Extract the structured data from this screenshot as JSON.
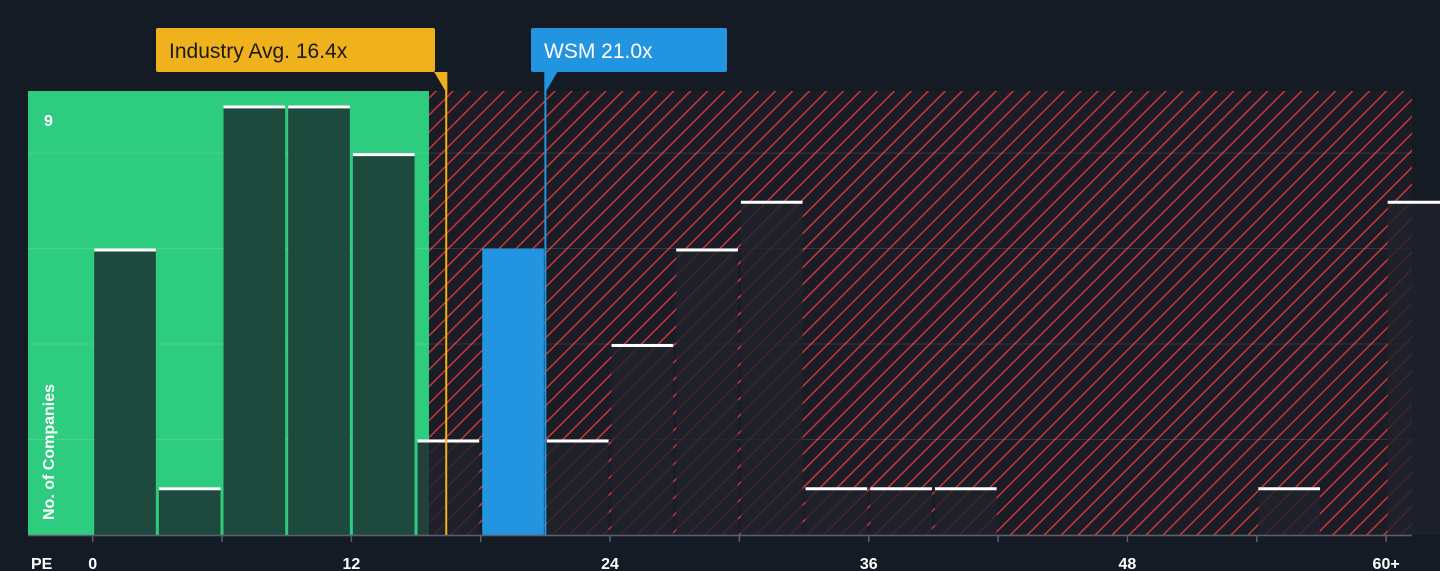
{
  "chart_data": {
    "type": "bar",
    "xlabel": "PE",
    "ylabel": "No. of Companies",
    "y_max_label": "9",
    "ylim": [
      0,
      9.3
    ],
    "xlim": [
      -3,
      61.2
    ],
    "x_ticks": [
      0,
      12,
      24,
      36,
      48,
      60
    ],
    "x_tick_labels": [
      "0",
      "12",
      "24",
      "36",
      "48",
      "60+"
    ],
    "bin_width": 3,
    "bins": [
      {
        "start": 0,
        "value": 6
      },
      {
        "start": 3,
        "value": 1
      },
      {
        "start": 6,
        "value": 9
      },
      {
        "start": 9,
        "value": 9
      },
      {
        "start": 12,
        "value": 8
      },
      {
        "start": 15,
        "value": 2
      },
      {
        "start": 18,
        "value": 6,
        "highlight": true
      },
      {
        "start": 21,
        "value": 2
      },
      {
        "start": 24,
        "value": 4
      },
      {
        "start": 27,
        "value": 6
      },
      {
        "start": 30,
        "value": 7
      },
      {
        "start": 33,
        "value": 1
      },
      {
        "start": 36,
        "value": 1
      },
      {
        "start": 39,
        "value": 1
      },
      {
        "start": 42,
        "value": 0
      },
      {
        "start": 45,
        "value": 0
      },
      {
        "start": 48,
        "value": 0
      },
      {
        "start": 51,
        "value": 0
      },
      {
        "start": 54,
        "value": 1
      },
      {
        "start": 57,
        "value": 0
      },
      {
        "start": 60,
        "value": 7
      }
    ],
    "industry_avg": {
      "label": "Industry Avg. 16.4x",
      "value": 16.4
    },
    "company": {
      "label": "WSM 21.0x",
      "value": 21.0
    },
    "fair_zone_end": 15.6,
    "colors": {
      "background": "#151b24",
      "green_zone": "#2ecc7f",
      "bar_dark": "#1e4a3e",
      "bar_red_zone": "#252530",
      "highlight": "#2394e0",
      "industry": "#f0b21c",
      "company": "#2394e0",
      "hatch": "#d0383e",
      "bar_top": "#ffffff"
    }
  }
}
